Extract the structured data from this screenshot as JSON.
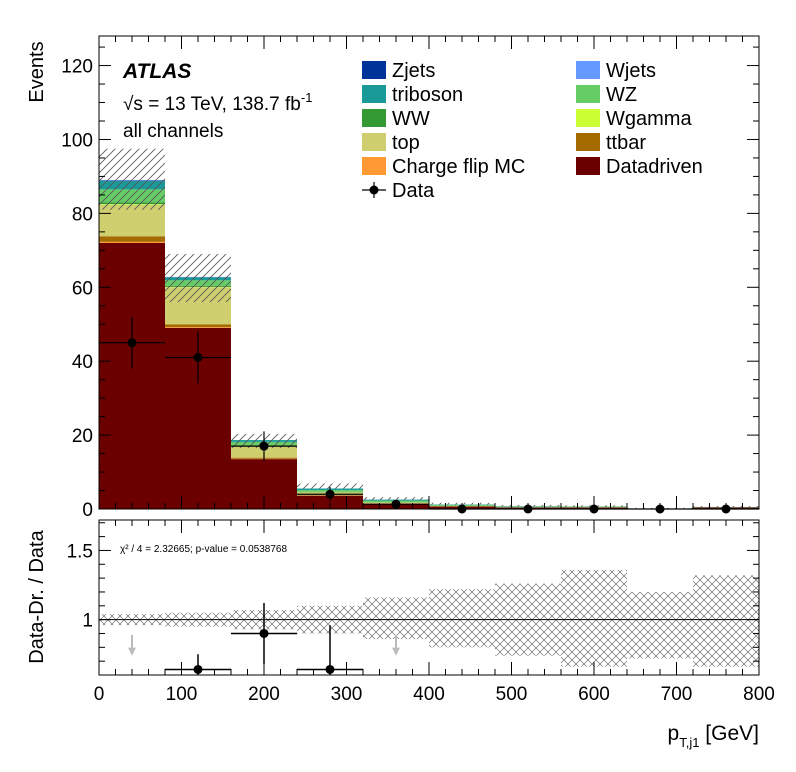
{
  "chart_data": [
    {
      "type": "bar",
      "stacked": true,
      "title": "",
      "xlabel": "",
      "ylabel": "Events",
      "xlim": [
        0,
        800
      ],
      "ylim": [
        0,
        128
      ],
      "xticks": [
        "0",
        "100",
        "200",
        "300",
        "400",
        "500",
        "600",
        "700",
        "800"
      ],
      "yticks": [
        "0",
        "20",
        "40",
        "60",
        "80",
        "100",
        "120"
      ],
      "bin_edges": [
        0,
        80,
        160,
        240,
        320,
        400,
        480,
        560,
        640,
        720,
        800
      ],
      "atlas_label": "ATLAS",
      "energy_label": "√s = 13 TeV, 138.7 fb",
      "energy_sup": "-1",
      "channel_label": "all channels",
      "legend_position": "top-right",
      "series": [
        {
          "name": "Datadriven",
          "color": "#6b0000",
          "values": [
            72,
            49,
            13.5,
            3.6,
            1.4,
            0.7,
            0.4,
            0.4,
            0.1,
            0.4
          ]
        },
        {
          "name": "Charge flip MC",
          "color": "#ff9933",
          "values": [
            0.3,
            0.2,
            0.1,
            0.05,
            0.05,
            0,
            0,
            0,
            0,
            0
          ]
        },
        {
          "name": "ttbar",
          "color": "#a36b00",
          "values": [
            1.5,
            0.8,
            0.3,
            0.1,
            0.05,
            0.02,
            0,
            0,
            0,
            0
          ]
        },
        {
          "name": "top",
          "color": "#cfcf70",
          "values": [
            8.5,
            10,
            3.2,
            0.8,
            0.3,
            0.1,
            0.05,
            0.05,
            0,
            0
          ]
        },
        {
          "name": "Wgamma",
          "color": "#ccff33",
          "values": [
            0.2,
            0.1,
            0.05,
            0,
            0,
            0,
            0,
            0,
            0,
            0
          ]
        },
        {
          "name": "WW",
          "color": "#339933",
          "values": [
            0.5,
            0.3,
            0.2,
            0.1,
            0.05,
            0.02,
            0,
            0,
            0,
            0
          ]
        },
        {
          "name": "WZ",
          "color": "#66cc66",
          "values": [
            3.5,
            1.5,
            0.8,
            0.5,
            0.4,
            0.3,
            0.2,
            0.2,
            0.05,
            0.1
          ]
        },
        {
          "name": "triboson",
          "color": "#1a9999",
          "values": [
            2.3,
            0.8,
            0.5,
            0.4,
            0.3,
            0.1,
            0.1,
            0.05,
            0,
            0.05
          ]
        },
        {
          "name": "Wjets",
          "color": "#6699ff",
          "values": [
            0.1,
            0.05,
            0,
            0,
            0,
            0,
            0,
            0,
            0,
            0
          ]
        },
        {
          "name": "Zjets",
          "color": "#003399",
          "values": [
            0.1,
            0.05,
            0,
            0,
            0,
            0,
            0,
            0,
            0,
            0
          ]
        }
      ],
      "uncertainty_band": {
        "low": [
          81,
          56,
          16.5,
          5.5,
          2.5,
          1.2,
          0.7,
          0.6,
          0.1,
          0.5
        ],
        "high": [
          97.5,
          69,
          20.3,
          6.9,
          3.2,
          1.7,
          1.1,
          1.0,
          0.3,
          0.8
        ]
      },
      "data": {
        "name": "Data",
        "x": [
          40,
          120,
          200,
          280,
          360,
          440,
          520,
          600,
          680,
          760
        ],
        "y": [
          45,
          41,
          17,
          4,
          1.3,
          0,
          0,
          0,
          0,
          0
        ],
        "yerr": [
          7,
          7,
          4,
          2,
          1,
          0,
          0,
          0,
          0,
          0
        ],
        "xerr": 40
      },
      "legend": {
        "left": [
          "Zjets",
          "triboson",
          "WW",
          "top",
          "Charge flip MC",
          "Data"
        ],
        "right": [
          "Wjets",
          "WZ",
          "Wgamma",
          "ttbar",
          "Datadriven"
        ]
      }
    },
    {
      "type": "scatter",
      "title": "",
      "xlabel": "p",
      "xlabel_sub": "T,j1",
      "xlabel_unit": " [GeV]",
      "ylabel": "Data-Dr. / Data",
      "xlim": [
        0,
        800
      ],
      "ylim": [
        0.6,
        1.72
      ],
      "xticks": [
        "0",
        "100",
        "200",
        "300",
        "400",
        "500",
        "600",
        "700",
        "800"
      ],
      "yticks": [
        "1",
        "1.5"
      ],
      "annotation": "χ² / 4 = 2.32665; p-value = 0.0538768",
      "reference_line": 1,
      "band": {
        "low": [
          0.96,
          0.95,
          0.93,
          0.9,
          0.86,
          0.8,
          0.74,
          0.66,
          0.72,
          0.66
        ],
        "high": [
          1.04,
          1.05,
          1.07,
          1.1,
          1.16,
          1.22,
          1.26,
          1.36,
          1.2,
          1.32
        ]
      },
      "points": {
        "x": [
          120,
          200,
          280
        ],
        "y": [
          0.64,
          0.9,
          0.64
        ],
        "yerr": [
          0.11,
          0.22,
          0.32
        ],
        "xerr": 40
      },
      "off_scale_arrows_x": [
        40,
        360
      ]
    }
  ]
}
